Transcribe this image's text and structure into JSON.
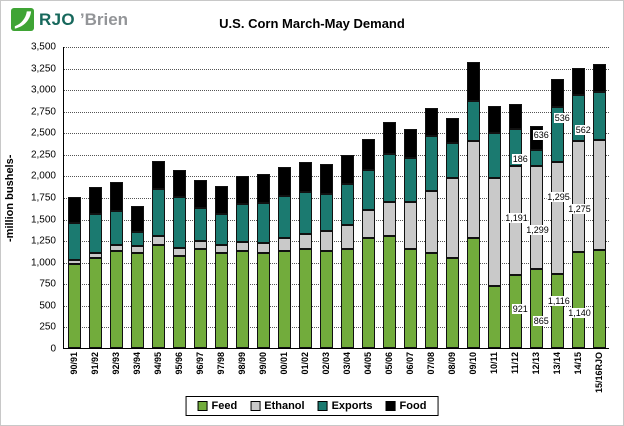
{
  "logo": {
    "prefix": "RJO",
    "suffix": "’Brien"
  },
  "chart_data": {
    "type": "bar",
    "subtype": "stacked",
    "title": "U.S. Corn March-May Demand",
    "ylabel": "-million bushels-",
    "xlabel": "",
    "unit": "million bushels",
    "ylim": [
      0,
      3500
    ],
    "ytick_step": 250,
    "grid": "horizontal-dotted",
    "legend_position": "bottom",
    "categories": [
      "90/91",
      "91/92",
      "92/93",
      "93/94",
      "94/95",
      "95/96",
      "96/97",
      "97/98",
      "98/99",
      "99/00",
      "00/01",
      "01/02",
      "02/03",
      "03/04",
      "04/05",
      "05/06",
      "06/07",
      "07/08",
      "08/09",
      "09/10",
      "10/11",
      "11/12",
      "12/13",
      "13/14",
      "14/15",
      "15/16RJO"
    ],
    "series": [
      {
        "name": "Feed",
        "color": "#72ac3c",
        "values": [
          975,
          1050,
          1125,
          1100,
          1200,
          1075,
          1150,
          1100,
          1125,
          1100,
          1125,
          1150,
          1125,
          1150,
          1275,
          1300,
          1150,
          1100,
          1050,
          1275,
          725,
          850,
          921,
          865,
          1116,
          1140
        ]
      },
      {
        "name": "Ethanol",
        "color": "#c9c9c9",
        "values": [
          50,
          60,
          70,
          90,
          100,
          90,
          90,
          100,
          110,
          120,
          150,
          180,
          230,
          280,
          330,
          400,
          550,
          725,
          930,
          1135,
          1250,
          1270,
          1191,
          1299,
          1295,
          1275
        ]
      },
      {
        "name": "Exports",
        "color": "#1b7a70",
        "values": [
          430,
          450,
          400,
          160,
          550,
          590,
          390,
          360,
          440,
          470,
          490,
          480,
          440,
          480,
          460,
          560,
          510,
          640,
          400,
          465,
          520,
          430,
          186,
          636,
          536,
          562
        ]
      },
      {
        "name": "Food",
        "color": "#000000",
        "values": [
          300,
          310,
          330,
          300,
          320,
          310,
          320,
          320,
          330,
          330,
          340,
          350,
          350,
          340,
          360,
          365,
          340,
          330,
          295,
          450,
          315,
          290,
          280,
          330,
          305,
          330
        ]
      }
    ],
    "annotations": [
      {
        "category": "12/13",
        "series": "Feed",
        "label": "921"
      },
      {
        "category": "12/13",
        "series": "Ethanol",
        "label": "1,191"
      },
      {
        "category": "12/13",
        "series": "Exports",
        "label": "186"
      },
      {
        "category": "13/14",
        "series": "Feed",
        "label": "865"
      },
      {
        "category": "13/14",
        "series": "Ethanol",
        "label": "1,299"
      },
      {
        "category": "13/14",
        "series": "Exports",
        "label": "636"
      },
      {
        "category": "14/15",
        "series": "Feed",
        "label": "1,116"
      },
      {
        "category": "14/15",
        "series": "Ethanol",
        "label": "1,295"
      },
      {
        "category": "14/15",
        "series": "Exports",
        "label": "536"
      },
      {
        "category": "15/16RJO",
        "series": "Feed",
        "label": "1,140"
      },
      {
        "category": "15/16RJO",
        "series": "Ethanol",
        "label": "1,275"
      },
      {
        "category": "15/16RJO",
        "series": "Exports",
        "label": "562"
      }
    ]
  }
}
